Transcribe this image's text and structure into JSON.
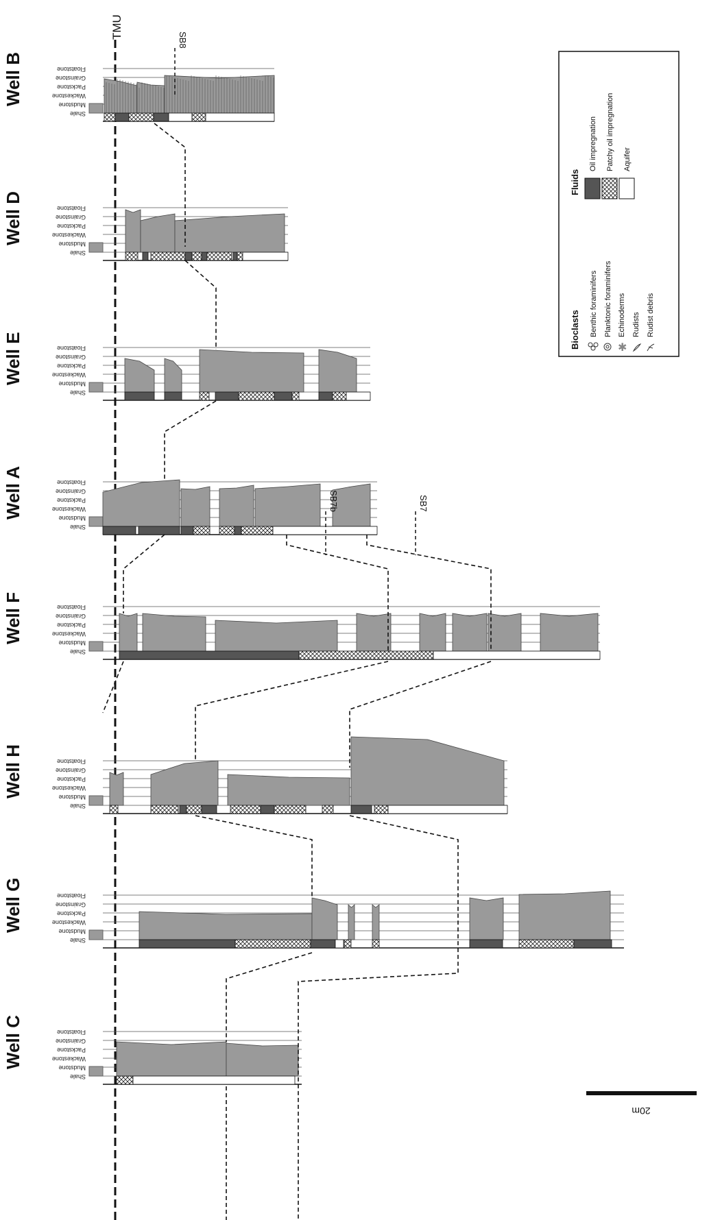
{
  "datum": {
    "label": "TMU"
  },
  "texture_classes": [
    "Shale",
    "Mudstone",
    "Wackestone",
    "Packstone",
    "Grainstone",
    "Floatstone"
  ],
  "wells": [
    {
      "name": "Well B",
      "key": "B"
    },
    {
      "name": "Well D",
      "key": "D"
    },
    {
      "name": "Well E",
      "key": "E"
    },
    {
      "name": "Well A",
      "key": "A"
    },
    {
      "name": "Well F",
      "key": "F"
    },
    {
      "name": "Well H",
      "key": "H"
    },
    {
      "name": "Well G",
      "key": "G"
    },
    {
      "name": "Well C",
      "key": "C"
    }
  ],
  "sequence_boundaries": [
    "SB8",
    "SB7b",
    "SB7"
  ],
  "scale_bar": {
    "label": "20m"
  },
  "legend": {
    "bioclasts": {
      "title": "Bioclasts",
      "items": [
        {
          "label": "Benthic foraminifers",
          "icon": "benthic-foram-icon"
        },
        {
          "label": "Planktonic foraminifers",
          "icon": "planktonic-foram-icon"
        },
        {
          "label": "Echinoderms",
          "icon": "echinoderm-icon"
        },
        {
          "label": "Rudists",
          "icon": "rudist-icon"
        },
        {
          "label": "Rudist debris",
          "icon": "rudist-debris-icon"
        }
      ]
    },
    "fluids": {
      "title": "Fluids",
      "items": [
        {
          "label": "Oil impregnation",
          "fill": "#555555"
        },
        {
          "label": "Patchy oil impregnation",
          "fill": "crosshatch"
        },
        {
          "label": "Aquifer",
          "fill": "#ffffff"
        }
      ]
    }
  },
  "colors": {
    "rock": "#9a9a9a",
    "oil": "#555555",
    "grid": "#444444"
  }
}
